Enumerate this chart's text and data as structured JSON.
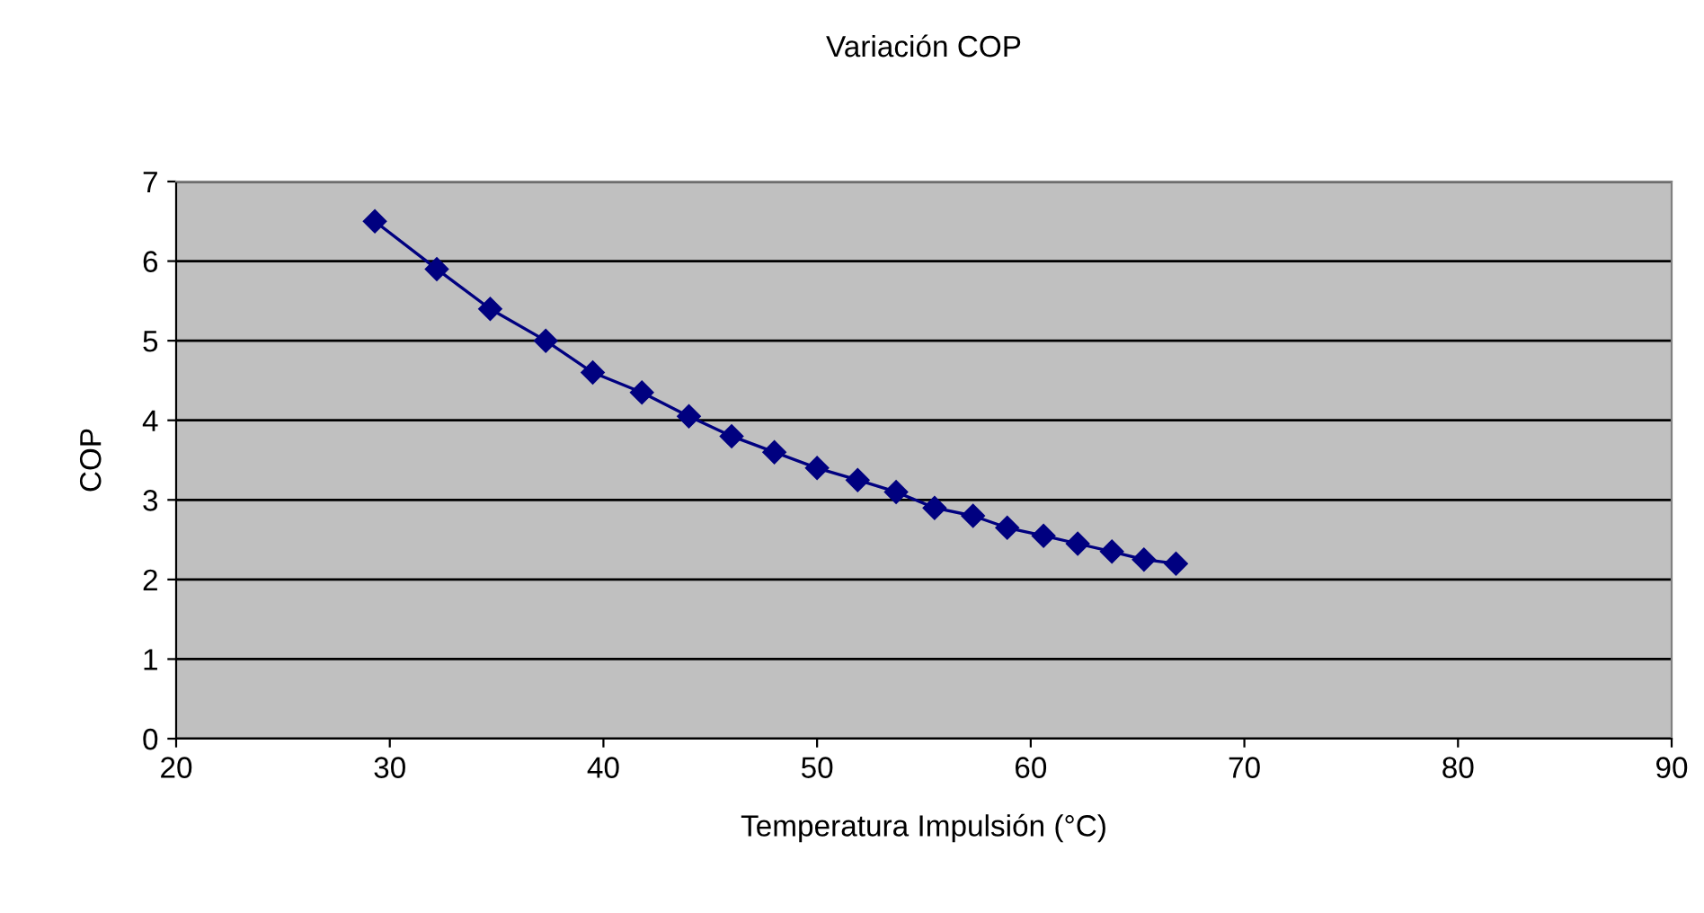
{
  "chart_data": {
    "type": "line",
    "title": "Variación COP",
    "xlabel": "Temperatura Impulsión (°C)",
    "ylabel": "COP",
    "x": [
      29.3,
      32.2,
      34.7,
      37.3,
      39.5,
      41.8,
      44.0,
      46.0,
      48.0,
      50.0,
      51.9,
      53.7,
      55.5,
      57.3,
      58.9,
      60.6,
      62.2,
      63.8,
      65.3,
      66.8
    ],
    "series": [
      {
        "color": "#000080",
        "values": [
          6.5,
          5.9,
          5.4,
          5.0,
          4.6,
          4.35,
          4.05,
          3.8,
          3.6,
          3.4,
          3.25,
          3.1,
          2.9,
          2.8,
          2.65,
          2.55,
          2.45,
          2.35,
          2.25,
          2.2
        ]
      }
    ],
    "xlim": [
      20,
      90
    ],
    "xticks": [
      20,
      30,
      40,
      50,
      60,
      70,
      80,
      90
    ],
    "ylim": [
      0,
      7
    ],
    "yticks": [
      0,
      1,
      2,
      3,
      4,
      5,
      6,
      7
    ],
    "grid": "y",
    "marker": "diamond",
    "line_style": "solid",
    "legend": false
  }
}
